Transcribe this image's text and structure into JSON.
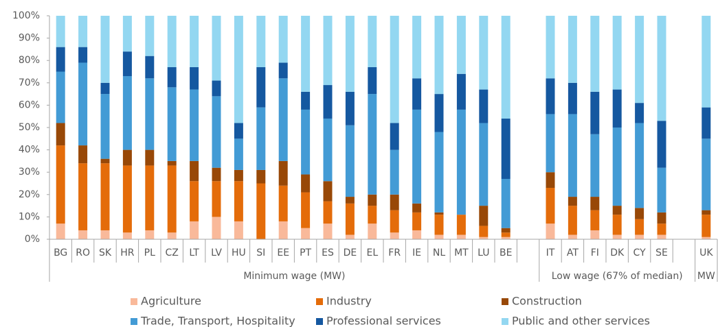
{
  "chart_data": {
    "type": "stacked_bar",
    "categories": [
      "BG",
      "RO",
      "SK",
      "HR",
      "PL",
      "CZ",
      "LT",
      "LV",
      "HU",
      "SI",
      "EE",
      "PT",
      "ES",
      "DE",
      "EL",
      "FR",
      "IE",
      "NL",
      "MT",
      "LU",
      "BE",
      null,
      "IT",
      "AT",
      "FI",
      "DK",
      "CY",
      "SE",
      null,
      "UK"
    ],
    "groups": [
      "Minimum wage (MW)",
      "Low wage (67% of median)",
      "MW"
    ],
    "series": [
      {
        "name": "Agriculture",
        "color": "#f9b99a",
        "values": [
          7,
          4,
          4,
          3,
          4,
          3,
          8,
          10,
          8,
          0,
          8,
          5,
          7,
          2,
          7,
          3,
          4,
          2,
          2,
          1,
          1,
          null,
          7,
          2,
          4,
          2,
          2,
          2,
          null,
          1
        ]
      },
      {
        "name": "Industry",
        "color": "#e46c0a",
        "values": [
          35,
          30,
          30,
          30,
          29,
          30,
          18,
          16,
          18,
          25,
          16,
          16,
          10,
          14,
          8,
          10,
          8,
          9,
          9,
          5,
          2,
          null,
          16,
          13,
          9,
          9,
          7,
          5,
          null,
          10
        ]
      },
      {
        "name": "Construction",
        "color": "#984807",
        "values": [
          10,
          8,
          2,
          7,
          7,
          2,
          9,
          6,
          5,
          6,
          11,
          8,
          9,
          3,
          5,
          7,
          4,
          1,
          0,
          9,
          2,
          null,
          7,
          4,
          6,
          4,
          5,
          5,
          null,
          2
        ]
      },
      {
        "name": "Trade, Transport, Hospitality",
        "color": "#439bd5",
        "values": [
          23,
          37,
          29,
          33,
          32,
          33,
          32,
          32,
          14,
          28,
          37,
          29,
          28,
          32,
          45,
          20,
          42,
          36,
          47,
          37,
          22,
          null,
          26,
          37,
          28,
          35,
          38,
          20,
          null,
          32
        ]
      },
      {
        "name": "Professional services",
        "color": "#1558a0",
        "values": [
          11,
          7,
          5,
          11,
          10,
          9,
          10,
          7,
          7,
          18,
          7,
          8,
          15,
          15,
          12,
          12,
          14,
          17,
          16,
          15,
          27,
          null,
          16,
          14,
          19,
          17,
          9,
          21,
          null,
          14
        ]
      },
      {
        "name": "Public and other services",
        "color": "#93d7f1",
        "values": [
          14,
          14,
          30,
          16,
          18,
          23,
          23,
          29,
          48,
          23,
          21,
          34,
          31,
          34,
          23,
          48,
          28,
          35,
          26,
          33,
          46,
          null,
          28,
          30,
          34,
          33,
          39,
          47,
          null,
          41
        ]
      }
    ],
    "ylim": [
      0,
      100
    ],
    "yticks": [
      {
        "value": 0,
        "label": "0%"
      },
      {
        "value": 10,
        "label": "10%"
      },
      {
        "value": 20,
        "label": "20%"
      },
      {
        "value": 30,
        "label": "30%"
      },
      {
        "value": 40,
        "label": "40%"
      },
      {
        "value": 50,
        "label": "50%"
      },
      {
        "value": 60,
        "label": "60%"
      },
      {
        "value": 70,
        "label": "70%"
      },
      {
        "value": 80,
        "label": "80%"
      },
      {
        "value": 90,
        "label": "90%"
      },
      {
        "value": 100,
        "label": "100%"
      }
    ]
  }
}
